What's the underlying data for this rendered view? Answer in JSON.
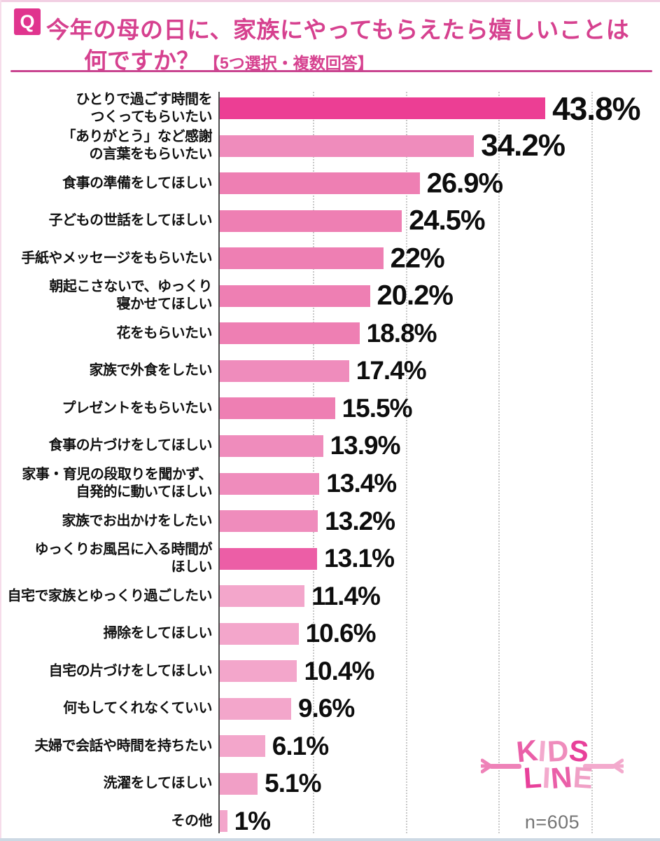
{
  "header": {
    "q_badge": "Q",
    "title_line1": "今年の母の日に、家族にやってもらえたら嬉しいことは",
    "title_line2": "何ですか？",
    "title_note": "【5つ選択・複数回答】",
    "accent_color": "#d6418f"
  },
  "chart_data": {
    "type": "bar",
    "orientation": "horizontal",
    "title": "今年の母の日に、家族にやってもらえたら嬉しいことは何ですか？【5つ選択・複数回答】",
    "unit": "%",
    "xlim": [
      0,
      58
    ],
    "gridline_values": [
      12.5,
      25,
      37.5,
      50
    ],
    "grid": "vertical-dotted",
    "sample_label": "n=605",
    "categories": [
      "ひとりで過ごす時間をつくってもらいたい",
      "「ありがとう」など感謝の言葉をもらいたい",
      "食事の準備をしてほしい",
      "子どもの世話をしてほしい",
      "手紙やメッセージをもらいたい",
      "朝起こさないで、ゆっくり寝かせてほしい",
      "花をもらいたい",
      "家族で外食をしたい",
      "プレゼントをもらいたい",
      "食事の片づけをしてほしい",
      "家事・育児の段取りを聞かず、自発的に動いてほしい",
      "家族でお出かけをしたい",
      "ゆっくりお風呂に入る時間がほしい",
      "自宅で家族とゆっくり過ごしたい",
      "掃除をしてほしい",
      "自宅の片づけをしてほしい",
      "何もしてくれなくていい",
      "夫婦で会話や時間を持ちたい",
      "洗濯をしてほしい",
      "その他"
    ],
    "category_lines": [
      [
        "ひとりで過ごす時間を",
        "つくってもらいたい"
      ],
      [
        "「ありがとう」など感謝",
        "の言葉をもらいたい"
      ],
      [
        "食事の準備をしてほしい"
      ],
      [
        "子どもの世話をしてほしい"
      ],
      [
        "手紙やメッセージをもらいたい"
      ],
      [
        "朝起こさないで、ゆっくり",
        "寝かせてほしい"
      ],
      [
        "花をもらいたい"
      ],
      [
        "家族で外食をしたい"
      ],
      [
        "プレゼントをもらいたい"
      ],
      [
        "食事の片づけをしてほしい"
      ],
      [
        "家事・育児の段取りを聞かず、",
        "自発的に動いてほしい"
      ],
      [
        "家族でお出かけをしたい"
      ],
      [
        "ゆっくりお風呂に入る時間が",
        "ほしい"
      ],
      [
        "自宅で家族とゆっくり過ごしたい"
      ],
      [
        "掃除をしてほしい"
      ],
      [
        "自宅の片づけをしてほしい"
      ],
      [
        "何もしてくれなくていい"
      ],
      [
        "夫婦で会話や時間を持ちたい"
      ],
      [
        "洗濯をしてほしい"
      ],
      [
        "その他"
      ]
    ],
    "values": [
      43.8,
      34.2,
      26.9,
      24.5,
      22,
      20.2,
      18.8,
      17.4,
      15.5,
      13.9,
      13.4,
      13.2,
      13.1,
      11.4,
      10.6,
      10.4,
      9.6,
      6.1,
      5.1,
      1
    ],
    "value_labels": [
      "43.8%",
      "34.2%",
      "26.9%",
      "24.5%",
      "22%",
      "20.2%",
      "18.8%",
      "17.4%",
      "15.5%",
      "13.9%",
      "13.4%",
      "13.2%",
      "13.1%",
      "11.4%",
      "10.6%",
      "10.4%",
      "9.6%",
      "6.1%",
      "5.1%",
      "1%"
    ],
    "bar_colors": [
      "#ec3e94",
      "#ef8cbc",
      "#ee7fb3",
      "#ee7fb3",
      "#ee7fb3",
      "#ee7fb3",
      "#ee7fb3",
      "#ef8cbc",
      "#ee7fb3",
      "#ef8cbc",
      "#ef8cbc",
      "#ef8cbc",
      "#ec5ea6",
      "#f3a6cb",
      "#f3a6cb",
      "#f3a6cb",
      "#f3a6cb",
      "#f3a6cb",
      "#f19fc6",
      "#f3a6cb"
    ],
    "axis_color": "#4d4d4d",
    "grid_color": "#c9c9c9",
    "label_color": "#111111",
    "value_color": "#0d0d0d"
  },
  "footer": {
    "logo_line1": "KIDS",
    "logo_line2": "LINE",
    "logo_letter_colors_line1": [
      "#ea5fa8",
      "#f3aacd",
      "#ef8cbc",
      "#e8409a"
    ],
    "logo_letter_colors_line2": [
      "#e8409a",
      "#f3aacd",
      "#ea5fa8",
      "#f0a0c6"
    ],
    "logo_arm_left_color": "#ee82b8",
    "logo_arm_right_color": "#f3aacd"
  }
}
